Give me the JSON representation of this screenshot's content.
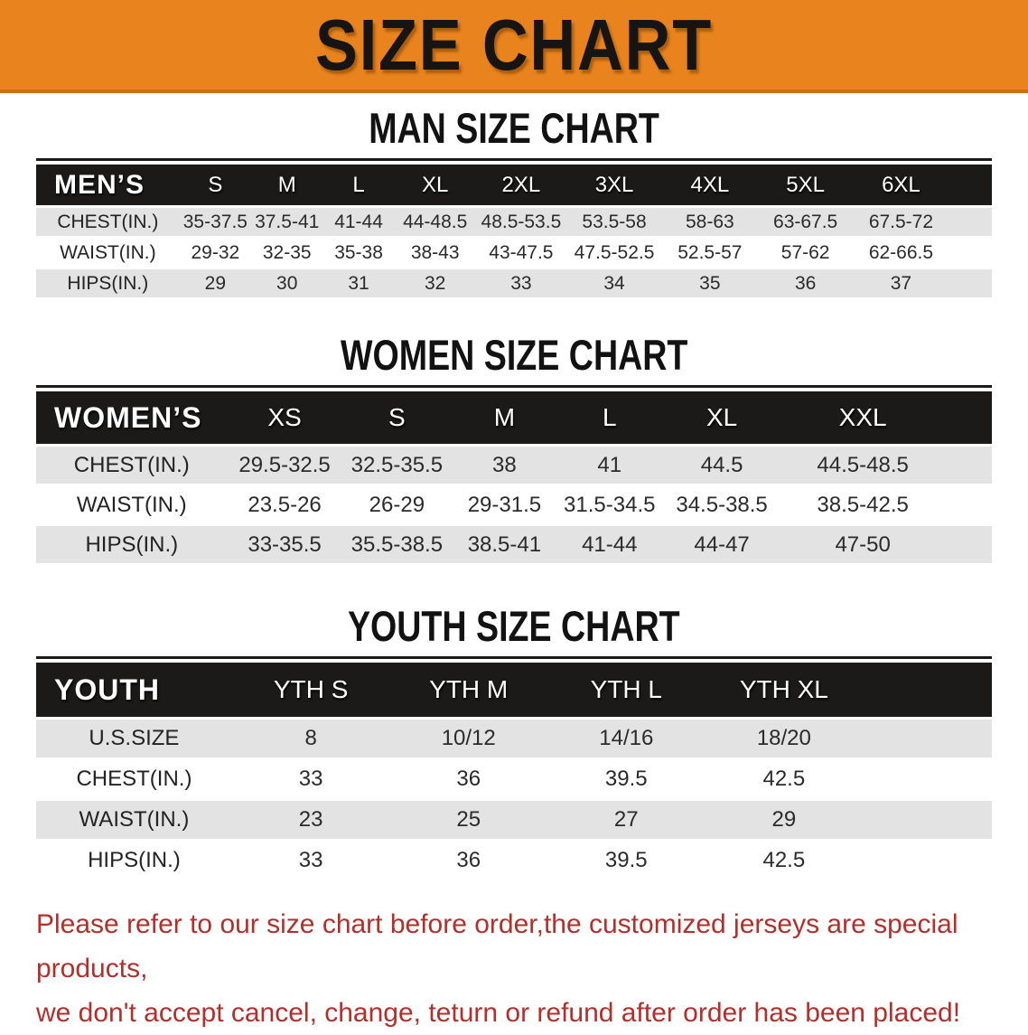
{
  "banner": {
    "title": "SIZE CHART"
  },
  "colors": {
    "banner_bg": "#E8831D",
    "table_header_bg": "#1b1a19",
    "row_stripe": "#e3e3e3",
    "footer_text": "#B0302C"
  },
  "sections": [
    {
      "heading": "MAN SIZE CHART",
      "table": {
        "corner": "MEN’S",
        "columns": [
          "S",
          "M",
          "L",
          "XL",
          "2XL",
          "3XL",
          "4XL",
          "5XL",
          "6XL"
        ],
        "rows": [
          {
            "label": "CHEST(IN.)",
            "values": [
              "35-37.5",
              "37.5-41",
              "41-44",
              "44-48.5",
              "48.5-53.5",
              "53.5-58",
              "58-63",
              "63-67.5",
              "67.5-72"
            ]
          },
          {
            "label": "WAIST(IN.)",
            "values": [
              "29-32",
              "32-35",
              "35-38",
              "38-43",
              "43-47.5",
              "47.5-52.5",
              "52.5-57",
              "57-62",
              "62-66.5"
            ]
          },
          {
            "label": "HIPS(IN.)",
            "values": [
              "29",
              "30",
              "31",
              "32",
              "33",
              "34",
              "35",
              "36",
              "37"
            ]
          }
        ]
      }
    },
    {
      "heading": "WOMEN SIZE CHART",
      "table": {
        "corner": "WOMEN’S",
        "columns": [
          "XS",
          "S",
          "M",
          "L",
          "XL",
          "XXL"
        ],
        "rows": [
          {
            "label": "CHEST(IN.)",
            "values": [
              "29.5-32.5",
              "32.5-35.5",
              "38",
              "41",
              "44.5",
              "44.5-48.5"
            ]
          },
          {
            "label": "WAIST(IN.)",
            "values": [
              "23.5-26",
              "26-29",
              "29-31.5",
              "31.5-34.5",
              "34.5-38.5",
              "38.5-42.5"
            ]
          },
          {
            "label": "HIPS(IN.)",
            "values": [
              "33-35.5",
              "35.5-38.5",
              "38.5-41",
              "41-44",
              "44-47",
              "47-50"
            ]
          }
        ]
      }
    },
    {
      "heading": "YOUTH SIZE CHART",
      "table": {
        "corner": "YOUTH",
        "columns": [
          "YTH S",
          "YTH M",
          "YTH L",
          "YTH XL"
        ],
        "rows": [
          {
            "label": "U.S.SIZE",
            "values": [
              "8",
              "10/12",
              "14/16",
              "18/20"
            ]
          },
          {
            "label": "CHEST(IN.)",
            "values": [
              "33",
              "36",
              "39.5",
              "42.5"
            ]
          },
          {
            "label": "WAIST(IN.)",
            "values": [
              "23",
              "25",
              "27",
              "29"
            ]
          },
          {
            "label": "HIPS(IN.)",
            "values": [
              "33",
              "36",
              "39.5",
              "42.5"
            ]
          }
        ]
      }
    }
  ],
  "footer": {
    "line1": "Please refer to our size chart before order,the customized jerseys are special products,",
    "line2": "we don't accept cancel, change, teturn or refund after order has been placed!"
  }
}
